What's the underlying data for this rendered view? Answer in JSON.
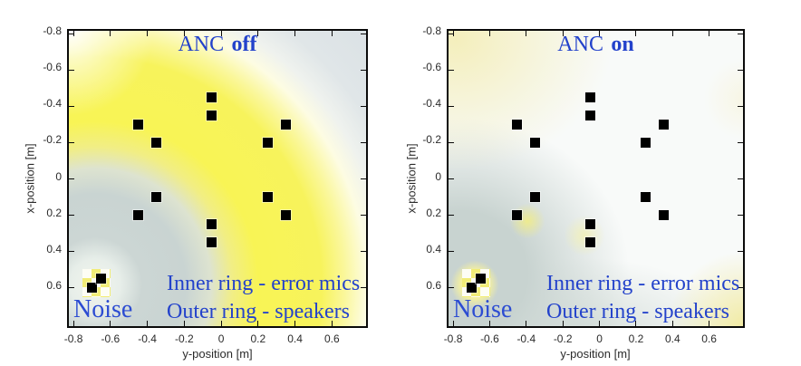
{
  "panels": [
    {
      "id": "anc-off",
      "title_prefix": "ANC",
      "title_emphasis": "off",
      "noise_label": "Noise",
      "legend_line1": "Inner ring - error mics",
      "legend_line2": "Outer ring - speakers"
    },
    {
      "id": "anc-on",
      "title_prefix": "ANC",
      "title_emphasis": "on",
      "noise_label": "Noise",
      "legend_line1": "Inner ring - error mics",
      "legend_line2": "Outer ring - speakers"
    }
  ],
  "axes": {
    "x_label": "y-position [m]",
    "y_label": "x-position [m]"
  },
  "colors": {
    "annotation_blue": "#2342cb",
    "tick_text": "#2b2b2b",
    "marker_black": "#000000",
    "loud_yellow": "#f8f455",
    "cool_gray_blue": "#d9e0e4",
    "quiet_gray_green": "#c9d4d2",
    "noise_patch_yellow": "#f1ec76"
  },
  "chart_data": {
    "type": "heatmap",
    "title": "Sound pressure field: ANC off vs ANC on",
    "point_format": "[y-position, x-position] in metres; first value on horizontal axis, second on vertical (negative up)",
    "x_axis": {
      "label": "y-position [m]",
      "ticks": [
        -0.8,
        -0.6,
        -0.4,
        -0.2,
        0,
        0.2,
        0.4,
        0.6
      ],
      "range": [
        -0.825,
        0.785
      ]
    },
    "y_axis": {
      "label": "x-position [m]",
      "ticks": [
        -0.8,
        -0.6,
        -0.4,
        -0.2,
        0,
        0.2,
        0.4,
        0.6
      ],
      "range": [
        -0.815,
        0.81
      ],
      "direction": "reversed"
    },
    "series": [
      {
        "name": "speakers-outer-ring",
        "marker": "black-square",
        "points": [
          [
            -0.05,
            -0.45
          ],
          [
            -0.45,
            -0.3
          ],
          [
            0.35,
            -0.3
          ],
          [
            -0.45,
            0.2
          ],
          [
            0.35,
            0.2
          ],
          [
            -0.05,
            0.35
          ]
        ]
      },
      {
        "name": "error-mics-inner-ring",
        "marker": "black-square",
        "points": [
          [
            -0.05,
            -0.35
          ],
          [
            -0.35,
            -0.2
          ],
          [
            0.25,
            -0.2
          ],
          [
            -0.35,
            0.1
          ],
          [
            0.25,
            0.1
          ],
          [
            -0.05,
            0.25
          ]
        ]
      },
      {
        "name": "noise-source",
        "marker": "black-square",
        "points": [
          [
            -0.7,
            0.6
          ],
          [
            -0.65,
            0.55
          ]
        ]
      }
    ],
    "heatmap_fields": [
      {
        "panel": "ANC off",
        "pattern": "bright yellow annular wavefront centred on the noise source at bottom-left sweeping through the ring region toward bottom-right; pale gray-green around the source and light blue-gray in the far top-right corner; white at top-left corner"
      },
      {
        "panel": "ANC on",
        "pattern": "mostly quiet near-white/gray; residual yellow spot at the noise source, pale yellow wash in top-left corner, yellow blob in bottom-right corner, small yellow patches near lower speakers; gray-green region over lower-left quadrant"
      }
    ],
    "legend_position": "text annotations inside each panel",
    "grid": false
  }
}
